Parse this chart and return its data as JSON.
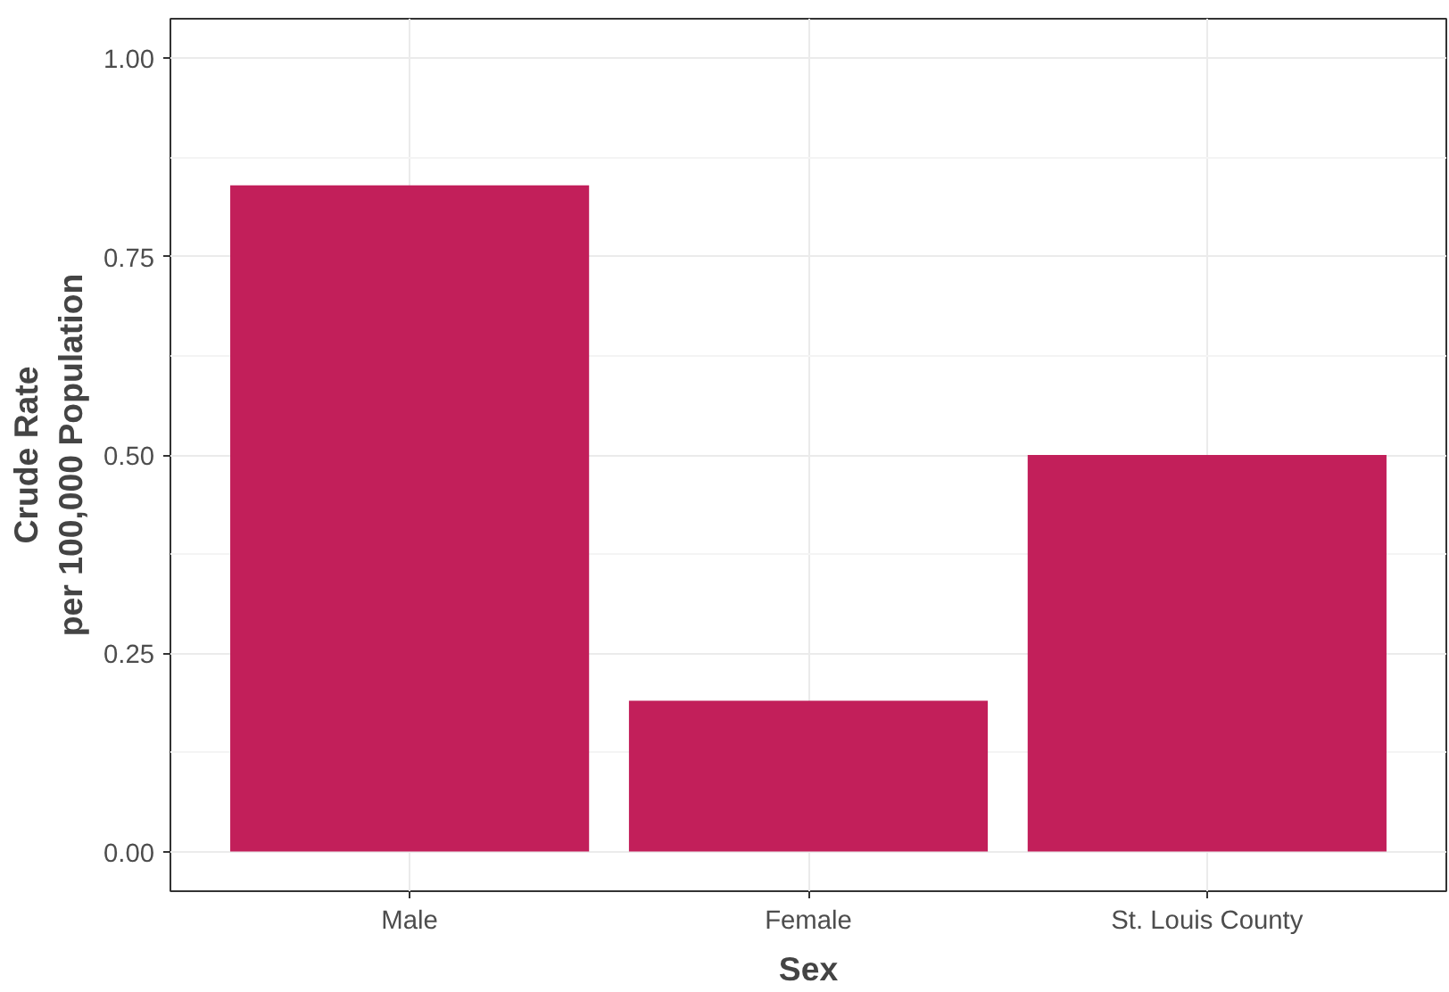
{
  "chart_data": {
    "type": "bar",
    "xlabel": "Sex",
    "ylabel": "Crude Rate\nper 100,000 Population",
    "categories": [
      "Male",
      "Female",
      "St. Louis County"
    ],
    "values": [
      0.84,
      0.19,
      0.5
    ],
    "color": "#c21f5a",
    "ylim": [
      -0.05,
      1.05
    ],
    "yticks": [
      {
        "value": 0,
        "label": "0.00"
      },
      {
        "value": 0.25,
        "label": "0.25"
      },
      {
        "value": 0.5,
        "label": "0.50"
      },
      {
        "value": 0.75,
        "label": "0.75"
      },
      {
        "value": 1,
        "label": "1.00"
      }
    ],
    "grid": true
  }
}
